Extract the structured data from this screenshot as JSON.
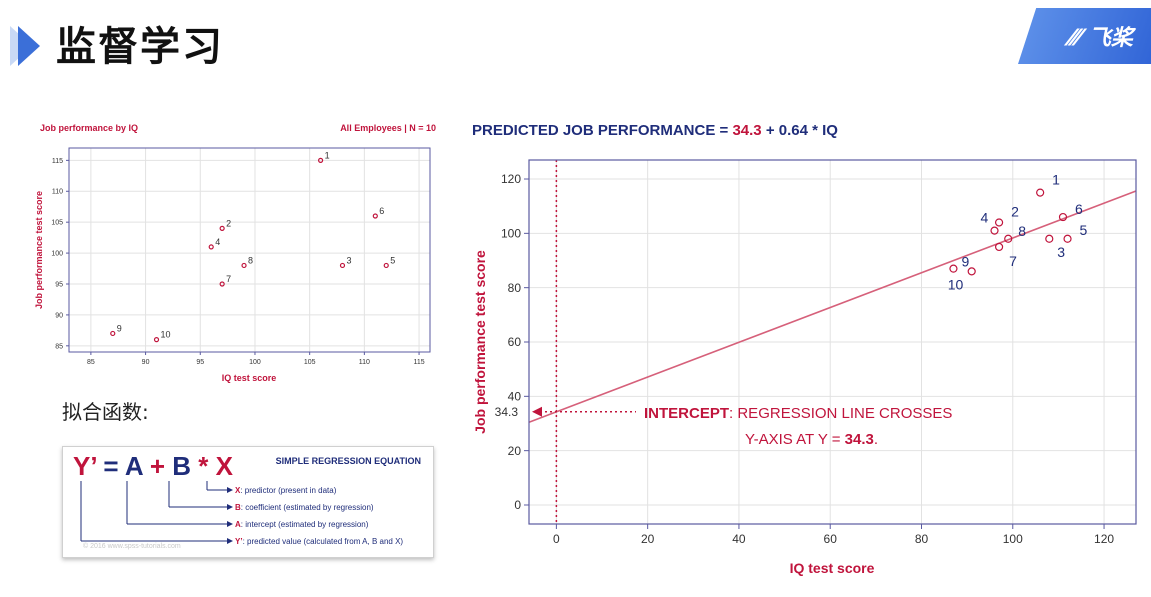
{
  "header": {
    "title": "监督学习",
    "brand": "飞桨"
  },
  "small_chart": {
    "title": "Job performance by IQ",
    "subtitle": "All Employees | N = 10",
    "xlabel": "IQ test score",
    "ylabel": "Job performance test score"
  },
  "main_chart": {
    "title_prefix": "PREDICTED JOB PERFORMANCE = ",
    "title_intercept": "34.3",
    "title_suffix": " + 0.64 * IQ",
    "xlabel": "IQ test score",
    "ylabel": "Job performance test score",
    "intercept_label": "34.3",
    "annotation_bold": "INTERCEPT",
    "annotation_line1_rest": ": REGRESSION LINE CROSSES",
    "annotation_line2_prefix": "Y-AXIS AT Y = ",
    "annotation_line2_value": "34.3",
    "annotation_line2_suffix": "."
  },
  "fit_label": "拟合函数:",
  "equation": {
    "title": "SIMPLE REGRESSION EQUATION",
    "formula": [
      {
        "t": "Y’",
        "c": "#c0143c"
      },
      {
        "t": " = ",
        "c": "#1f2d7a"
      },
      {
        "t": "A",
        "c": "#1f2d7a"
      },
      {
        "t": " + ",
        "c": "#c0143c"
      },
      {
        "t": "B",
        "c": "#1f2d7a"
      },
      {
        "t": " * ",
        "c": "#c0143c"
      },
      {
        "t": "X",
        "c": "#c0143c"
      }
    ],
    "legend": [
      {
        "key": "X",
        "text": ": predictor (present in data)"
      },
      {
        "key": "B",
        "text": ": coefficient (estimated by regression)"
      },
      {
        "key": "A",
        "text": ": intercept (estimated by regression)"
      },
      {
        "key": "Y’",
        "text": ": predicted value (calculated from A, B and X)"
      }
    ],
    "copyright": "© 2016 www.spss-tutorials.com"
  },
  "chart_data": [
    {
      "type": "scatter",
      "title": "Job performance by IQ",
      "subtitle": "All Employees | N = 10",
      "xlabel": "IQ test score",
      "ylabel": "Job performance test score",
      "xlim": [
        83,
        116
      ],
      "ylim": [
        84,
        117
      ],
      "xticks": [
        85,
        90,
        95,
        100,
        105,
        110,
        115
      ],
      "yticks": [
        85,
        90,
        95,
        100,
        105,
        110,
        115
      ],
      "grid": true,
      "marker_color": "#c0143c",
      "points": [
        {
          "id": "1",
          "x": 106,
          "y": 115
        },
        {
          "id": "2",
          "x": 97,
          "y": 104
        },
        {
          "id": "3",
          "x": 108,
          "y": 98
        },
        {
          "id": "4",
          "x": 96,
          "y": 101
        },
        {
          "id": "5",
          "x": 112,
          "y": 98
        },
        {
          "id": "6",
          "x": 111,
          "y": 106
        },
        {
          "id": "7",
          "x": 97,
          "y": 95
        },
        {
          "id": "8",
          "x": 99,
          "y": 98
        },
        {
          "id": "9",
          "x": 87,
          "y": 87
        },
        {
          "id": "10",
          "x": 91,
          "y": 86
        }
      ]
    },
    {
      "type": "scatter",
      "title": "PREDICTED JOB PERFORMANCE = 34.3 + 0.64 * IQ",
      "xlabel": "IQ test score",
      "ylabel": "Job performance test score",
      "xlim": [
        -6,
        127
      ],
      "ylim": [
        -7,
        127
      ],
      "xticks": [
        0,
        20,
        40,
        60,
        80,
        100,
        120
      ],
      "yticks": [
        0,
        20,
        40,
        60,
        80,
        100,
        120
      ],
      "grid": true,
      "marker_color": "#c0143c",
      "regression_line": {
        "intercept": 34.3,
        "slope": 0.64
      },
      "points": [
        {
          "id": "1",
          "x": 106,
          "y": 115
        },
        {
          "id": "2",
          "x": 97,
          "y": 104
        },
        {
          "id": "3",
          "x": 108,
          "y": 98
        },
        {
          "id": "4",
          "x": 96,
          "y": 101
        },
        {
          "id": "5",
          "x": 112,
          "y": 98
        },
        {
          "id": "6",
          "x": 111,
          "y": 106
        },
        {
          "id": "7",
          "x": 97,
          "y": 95
        },
        {
          "id": "8",
          "x": 99,
          "y": 98
        },
        {
          "id": "9",
          "x": 87,
          "y": 87
        },
        {
          "id": "10",
          "x": 91,
          "y": 86
        }
      ]
    }
  ]
}
